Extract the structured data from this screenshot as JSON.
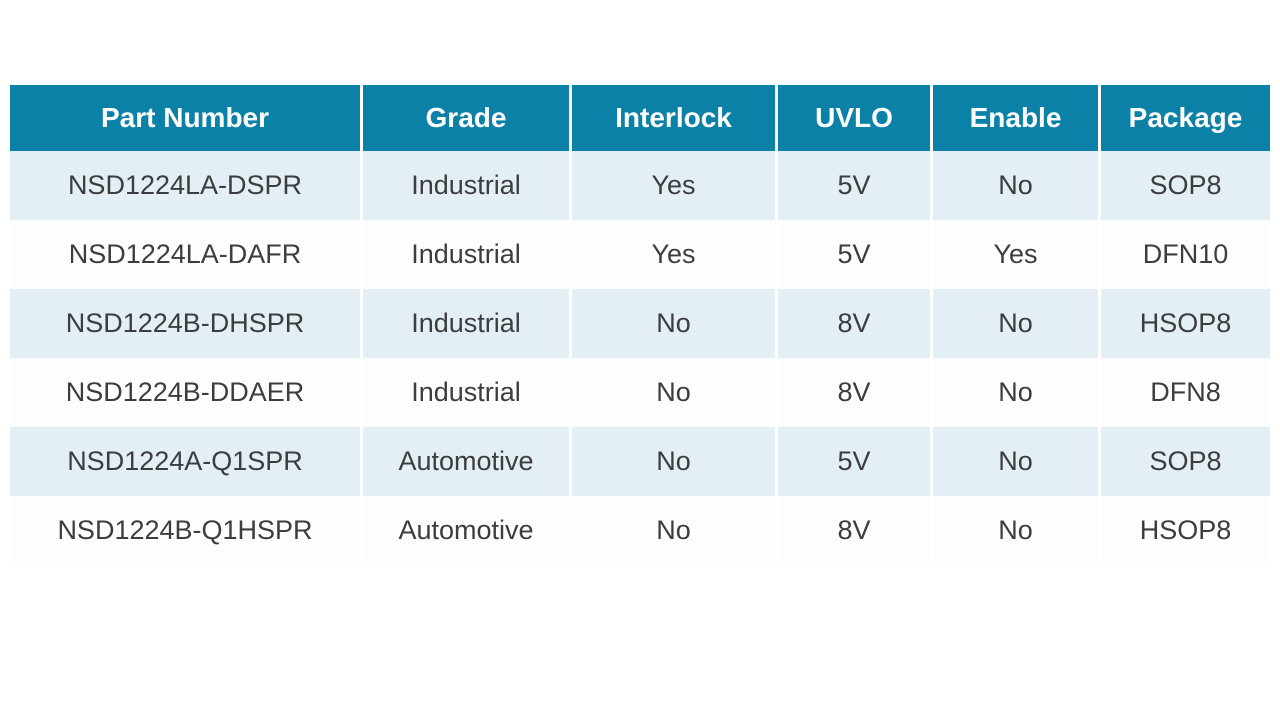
{
  "table": {
    "headers": [
      "Part Number",
      "Grade",
      "Interlock",
      "UVLO",
      "Enable",
      "Package"
    ],
    "rows": [
      [
        "NSD1224LA-DSPR",
        "Industrial",
        "Yes",
        "5V",
        "No",
        "SOP8"
      ],
      [
        "NSD1224LA-DAFR",
        "Industrial",
        "Yes",
        "5V",
        "Yes",
        "DFN10"
      ],
      [
        "NSD1224B-DHSPR",
        "Industrial",
        "No",
        "8V",
        "No",
        "HSOP8"
      ],
      [
        "NSD1224B-DDAER",
        "Industrial",
        "No",
        "8V",
        "No",
        "DFN8"
      ],
      [
        "NSD1224A-Q1SPR",
        "Automotive",
        "No",
        "5V",
        "No",
        "SOP8"
      ],
      [
        "NSD1224B-Q1HSPR",
        "Automotive",
        "No",
        "8V",
        "No",
        "HSOP8"
      ]
    ],
    "colors": {
      "header_bg": "#0b81a8",
      "header_text": "#ffffff",
      "row_alt_bg": "#e3eef5",
      "row_bg": "#fcfdfe",
      "body_text": "#3d3d3d"
    }
  }
}
